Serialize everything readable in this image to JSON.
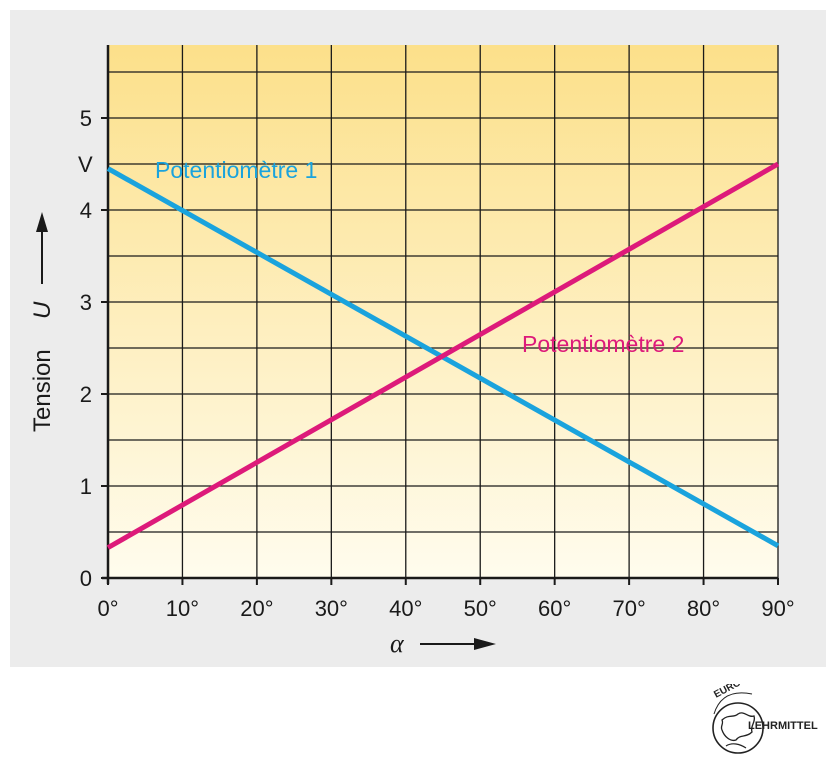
{
  "chart_data": {
    "type": "line",
    "x_unit_label": "°",
    "x_ticks": [
      0,
      10,
      20,
      30,
      40,
      50,
      60,
      70,
      80,
      90
    ],
    "y_ticks": [
      0,
      1,
      2,
      3,
      4,
      5
    ],
    "y_unit": "V",
    "xlim": [
      0,
      90
    ],
    "ylim": [
      0,
      5.7
    ],
    "grid": true,
    "xlabel_symbol": "α",
    "ylabel_text": "Tension",
    "ylabel_symbol": "U",
    "series": [
      {
        "name": "Potentiomètre 1",
        "color": "#1aa3dd",
        "x": [
          0,
          90
        ],
        "y": [
          4.45,
          0.35
        ]
      },
      {
        "name": "Potentiomètre 2",
        "color": "#dd1a7a",
        "x": [
          0,
          90
        ],
        "y": [
          0.33,
          4.5
        ]
      }
    ]
  },
  "logo": {
    "top_text": "EUROPA",
    "side_text": "LEHRMITTEL"
  }
}
